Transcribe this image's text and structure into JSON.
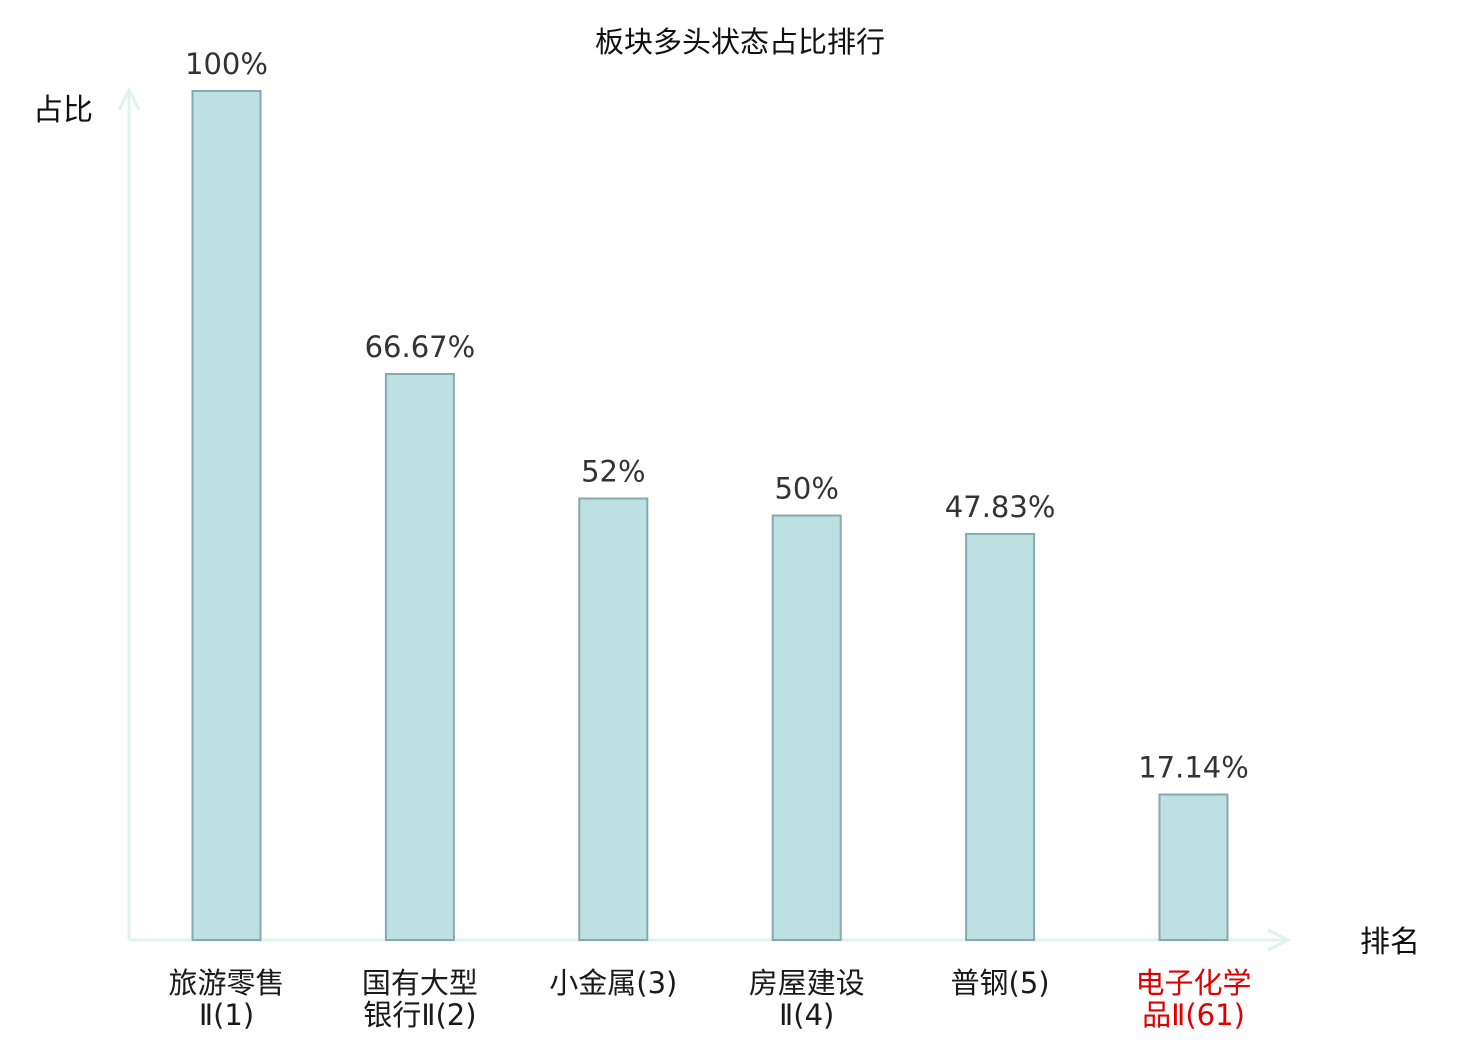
{
  "chart_data": {
    "type": "bar",
    "title": "板块多头状态占比排行",
    "ylabel": "占比",
    "xlabel": "排名",
    "ylim": [
      0,
      100
    ],
    "grid": false,
    "categories": [
      {
        "lines": [
          "旅游零售",
          "Ⅱ(1)"
        ],
        "highlight": false
      },
      {
        "lines": [
          "国有大型",
          "银行Ⅱ(2)"
        ],
        "highlight": false
      },
      {
        "lines": [
          "小金属(3)"
        ],
        "highlight": false
      },
      {
        "lines": [
          "房屋建设",
          "Ⅱ(4)"
        ],
        "highlight": false
      },
      {
        "lines": [
          "普钢(5)"
        ],
        "highlight": false
      },
      {
        "lines": [
          "电子化学",
          "品Ⅱ(61)"
        ],
        "highlight": true
      }
    ],
    "values": [
      100,
      66.67,
      52,
      50,
      47.83,
      17.14
    ],
    "value_labels": [
      "100%",
      "66.67%",
      "52%",
      "50%",
      "47.83%",
      "17.14%"
    ],
    "colors": {
      "bar_fill": "#bde0e3",
      "bar_stroke": "#86a9ad",
      "axis": "#dff2ef",
      "label_text": "#333333",
      "title_text": "#111111",
      "category_text": "#1a1a1a",
      "highlight_text": "#e00000"
    }
  }
}
